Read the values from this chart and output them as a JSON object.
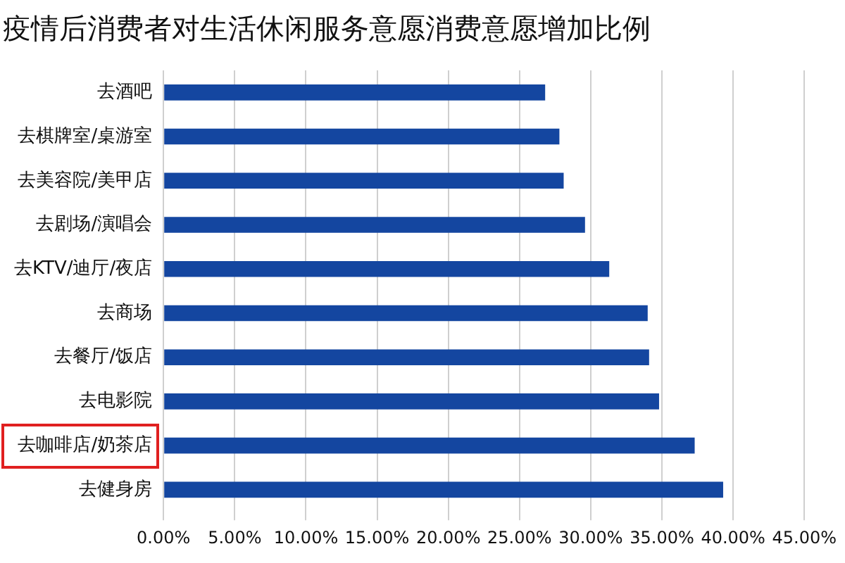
{
  "chart_data": {
    "type": "bar",
    "title": "疫情后消费者对生活休闲服务意愿消费意愿增加比例",
    "orientation": "horizontal",
    "categories": [
      "去酒吧",
      "去棋牌室/桌游室",
      "去美容院/美甲店",
      "去剧场/演唱会",
      "去KTV/迪厅/夜店",
      "去商场",
      "去餐厅/饭店",
      "去电影院",
      "去咖啡店/奶茶店",
      "去健身房"
    ],
    "values": [
      26.8,
      27.8,
      28.1,
      29.6,
      31.3,
      34.0,
      34.1,
      34.8,
      37.3,
      39.3
    ],
    "color": "#1446a0",
    "xlim": [
      0,
      45
    ],
    "xticks": [
      {
        "value": 0,
        "label": "0.00%"
      },
      {
        "value": 5,
        "label": "5.00%"
      },
      {
        "value": 10,
        "label": "10.00%"
      },
      {
        "value": 15,
        "label": "15.00%"
      },
      {
        "value": 20,
        "label": "20.00%"
      },
      {
        "value": 25,
        "label": "25.00%"
      },
      {
        "value": 30,
        "label": "30.00%"
      },
      {
        "value": 35,
        "label": "35.00%"
      },
      {
        "value": 40,
        "label": "40.00%"
      },
      {
        "value": 45,
        "label": "45.00%"
      }
    ],
    "grid": "x"
  }
}
